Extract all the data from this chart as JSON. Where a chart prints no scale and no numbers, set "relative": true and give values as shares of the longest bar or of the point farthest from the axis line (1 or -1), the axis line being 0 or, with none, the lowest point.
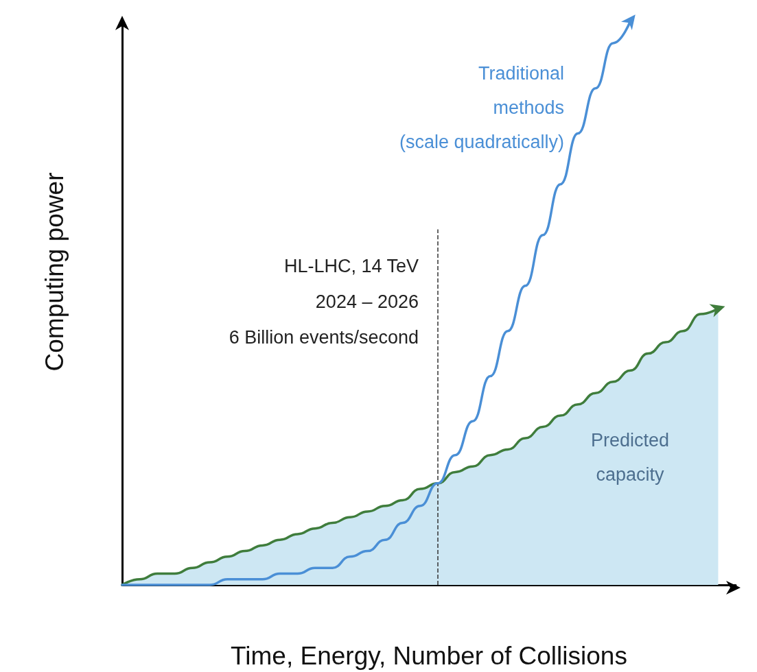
{
  "chart_data": {
    "type": "line",
    "relative": true,
    "xlabel": "Time, Energy, Number of Collisions",
    "ylabel": "Computing power",
    "categories": [
      null,
      null,
      null,
      null,
      null,
      null,
      null,
      null,
      null,
      null,
      null,
      null,
      null,
      null,
      null,
      null,
      null,
      null,
      null,
      null,
      null,
      null,
      null,
      null,
      null,
      null,
      null,
      null,
      null,
      null,
      null,
      null,
      null,
      null,
      null,
      null
    ],
    "series": [
      {
        "name": "Traditional methods (scale quadratically)",
        "color": "#4a8fd6",
        "values": [
          0,
          0,
          0,
          0,
          0,
          0,
          0.01,
          0.01,
          0.01,
          0.02,
          0.02,
          0.03,
          0.03,
          0.05,
          0.06,
          0.08,
          0.11,
          0.14,
          0.18,
          0.23,
          0.29,
          0.37,
          0.45,
          0.53,
          0.62,
          0.71,
          0.8,
          0.88,
          0.96,
          1,
          null,
          null,
          null,
          null,
          null,
          null
        ]
      },
      {
        "name": "Predicted capacity",
        "type": "area",
        "color": "#3f7d3c",
        "values": [
          0,
          0.01,
          0.02,
          0.02,
          0.03,
          0.04,
          0.05,
          0.06,
          0.07,
          0.08,
          0.09,
          0.1,
          0.11,
          0.12,
          0.13,
          0.14,
          0.15,
          0.17,
          0.18,
          0.2,
          0.21,
          0.23,
          0.24,
          0.26,
          0.28,
          0.3,
          0.32,
          0.34,
          0.36,
          0.38,
          0.41,
          0.43,
          0.45,
          0.48,
          0.49,
          null
        ]
      }
    ],
    "annotations": [
      "HL-LHC, 14 TeV\n2024 – 2026\n6 Billion events/second"
    ],
    "legend": false,
    "grid": false,
    "marker": "none"
  }
}
